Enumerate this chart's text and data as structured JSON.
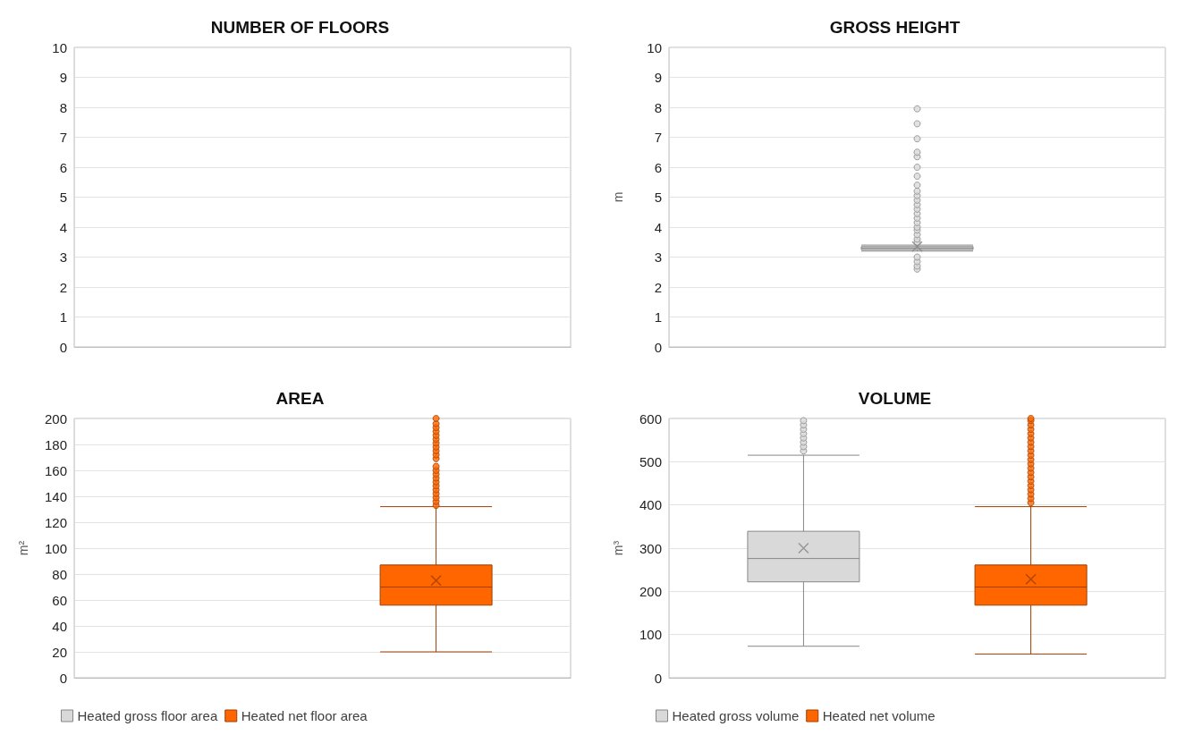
{
  "chart_data": [
    {
      "type": "box",
      "title": "NUMBER OF FLOORS",
      "categories": [
        null
      ],
      "ylim": [
        0,
        10
      ],
      "yticks": [
        0,
        1,
        2,
        3,
        4,
        5,
        6,
        7,
        8,
        9,
        10
      ],
      "grid": "y",
      "tick_labels": "y"
    },
    {
      "type": "box",
      "title": "GROSS HEIGHT",
      "ylabel": "m",
      "categories": [
        null
      ],
      "ylim": [
        0,
        10
      ],
      "yticks": [
        0,
        1,
        2,
        3,
        4,
        5,
        6,
        7,
        8,
        9,
        10
      ],
      "grid": "y",
      "tick_labels": "y",
      "series": [
        {
          "color": "#d9d9d9",
          "boxes": [
            {
              "low": 3.2,
              "q1": 3.25,
              "median": 3.3,
              "q3": 3.35,
              "high": 3.4,
              "mean": 3.35,
              "outliers": [
                2.6,
                2.7,
                2.85,
                3.0,
                3.5,
                3.6,
                3.75,
                3.9,
                4.0,
                4.15,
                4.3,
                4.45,
                4.6,
                4.75,
                4.9,
                5.05,
                5.2,
                5.4,
                5.7,
                6.0,
                6.35,
                6.5,
                6.95,
                7.45,
                7.95
              ]
            }
          ]
        }
      ]
    },
    {
      "type": "box",
      "title": "AREA",
      "ylabel": "m²",
      "categories": [
        null
      ],
      "ylim": [
        0,
        200
      ],
      "yticks": [
        0,
        20,
        40,
        60,
        80,
        100,
        120,
        140,
        160,
        180,
        200
      ],
      "grid": "y",
      "tick_labels": "y",
      "legend": "bottom",
      "series": [
        {
          "name": "Heated gross floor area",
          "color": "#d9d9d9",
          "boxes": [
            null
          ]
        },
        {
          "name": "Heated net floor area",
          "color": "#ff6600",
          "boxes": [
            {
              "low": 20,
              "q1": 56,
              "median": 70,
              "q3": 87,
              "high": 132,
              "mean": 75,
              "outliers": [
                133,
                136,
                139,
                142,
                145,
                148,
                151,
                154,
                157,
                160,
                163,
                169,
                172,
                175,
                178,
                181,
                184,
                187,
                190,
                193,
                196,
                200
              ]
            }
          ]
        }
      ]
    },
    {
      "type": "box",
      "title": "VOLUME",
      "ylabel": "m³",
      "categories": [
        null
      ],
      "ylim": [
        0,
        600
      ],
      "yticks": [
        0,
        100,
        200,
        300,
        400,
        500,
        600
      ],
      "grid": "y",
      "tick_labels": "y",
      "legend": "bottom",
      "series": [
        {
          "name": "Heated gross volume",
          "color": "#d9d9d9",
          "boxes": [
            {
              "low": 73,
              "q1": 222,
              "median": 276,
              "q3": 339,
              "high": 515,
              "mean": 300,
              "outliers": [
                525,
                535,
                545,
                555,
                565,
                575,
                585,
                595
              ]
            }
          ]
        },
        {
          "name": "Heated net volume",
          "color": "#ff6600",
          "boxes": [
            {
              "low": 55,
              "q1": 168,
              "median": 210,
              "q3": 261,
              "high": 396,
              "mean": 228,
              "outliers": [
                405,
                415,
                425,
                435,
                445,
                455,
                465,
                475,
                485,
                495,
                505,
                515,
                525,
                535,
                545,
                555,
                565,
                575,
                585,
                595,
                600
              ]
            }
          ]
        }
      ]
    }
  ]
}
